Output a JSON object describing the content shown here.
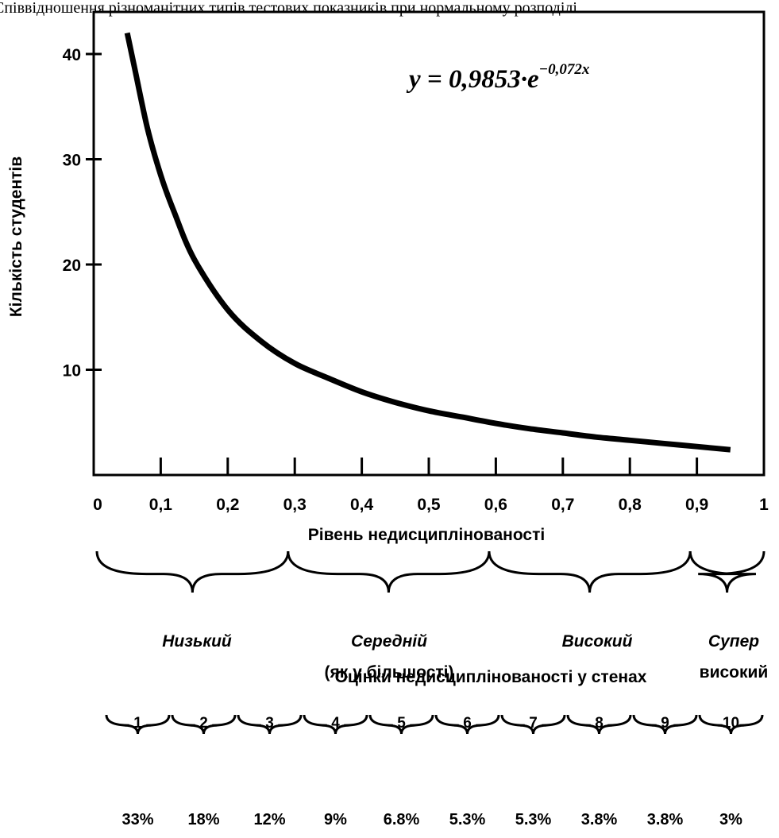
{
  "caption": "Співвідношення різноманітних типів тестових показників при нормальному розподілі",
  "chart_data": {
    "type": "line",
    "equation": {
      "lhs": "y = 0,9853",
      "dot": "·",
      "base": "e",
      "exponent": "−0,072x"
    },
    "xlabel": "Рівень недисциплінованості",
    "ylabel": "Кількість студентів",
    "xlim": [
      0,
      1
    ],
    "ylim": [
      0,
      42
    ],
    "x_ticks": [
      {
        "value": 0,
        "label": "0"
      },
      {
        "value": 0.1,
        "label": "0,1"
      },
      {
        "value": 0.2,
        "label": "0,2"
      },
      {
        "value": 0.3,
        "label": "0,3"
      },
      {
        "value": 0.4,
        "label": "0,4"
      },
      {
        "value": 0.5,
        "label": "0,5"
      },
      {
        "value": 0.6,
        "label": "0,6"
      },
      {
        "value": 0.7,
        "label": "0,7"
      },
      {
        "value": 0.8,
        "label": "0,8"
      },
      {
        "value": 0.9,
        "label": "0,9"
      },
      {
        "value": 1,
        "label": "1"
      }
    ],
    "y_ticks": [
      {
        "value": 10,
        "label": "10"
      },
      {
        "value": 20,
        "label": "20"
      },
      {
        "value": 30,
        "label": "30"
      },
      {
        "value": 40,
        "label": "40"
      }
    ],
    "series": [
      {
        "x": [
          0.05,
          0.06,
          0.08,
          0.1,
          0.12,
          0.15,
          0.2,
          0.25,
          0.3,
          0.35,
          0.4,
          0.45,
          0.5,
          0.55,
          0.6,
          0.65,
          0.7,
          0.75,
          0.8,
          0.85,
          0.9,
          0.95
        ],
        "y": [
          42,
          39,
          33,
          28.5,
          25,
          20.5,
          15.7,
          12.7,
          10.6,
          9.2,
          7.9,
          6.9,
          6.1,
          5.5,
          4.9,
          4.4,
          4.0,
          3.6,
          3.3,
          3.0,
          2.7,
          2.4
        ]
      }
    ],
    "categories": [
      {
        "label": "Низький",
        "sublabel": "",
        "from": 0,
        "to": 0.29
      },
      {
        "label": "Середній",
        "sublabel": "(як у більшості)",
        "from": 0.29,
        "to": 0.59
      },
      {
        "label": "Високий",
        "sublabel": "",
        "from": 0.59,
        "to": 0.89
      },
      {
        "label": "Супер",
        "sublabel": "високий",
        "from": 0.89,
        "to": 1.0
      }
    ],
    "sten_title": "Оцінки недисциплінованості у стенах",
    "stens": [
      {
        "label": "1",
        "percent": "33%"
      },
      {
        "label": "2",
        "percent": "18%"
      },
      {
        "label": "3",
        "percent": "12%"
      },
      {
        "label": "4",
        "percent": "9%"
      },
      {
        "label": "5",
        "percent": "6.8%"
      },
      {
        "label": "6",
        "percent": "5.3%"
      },
      {
        "label": "7",
        "percent": "5.3%"
      },
      {
        "label": "8",
        "percent": "3.8%"
      },
      {
        "label": "9",
        "percent": "3.8%"
      },
      {
        "label": "10",
        "percent": "3%"
      }
    ]
  }
}
